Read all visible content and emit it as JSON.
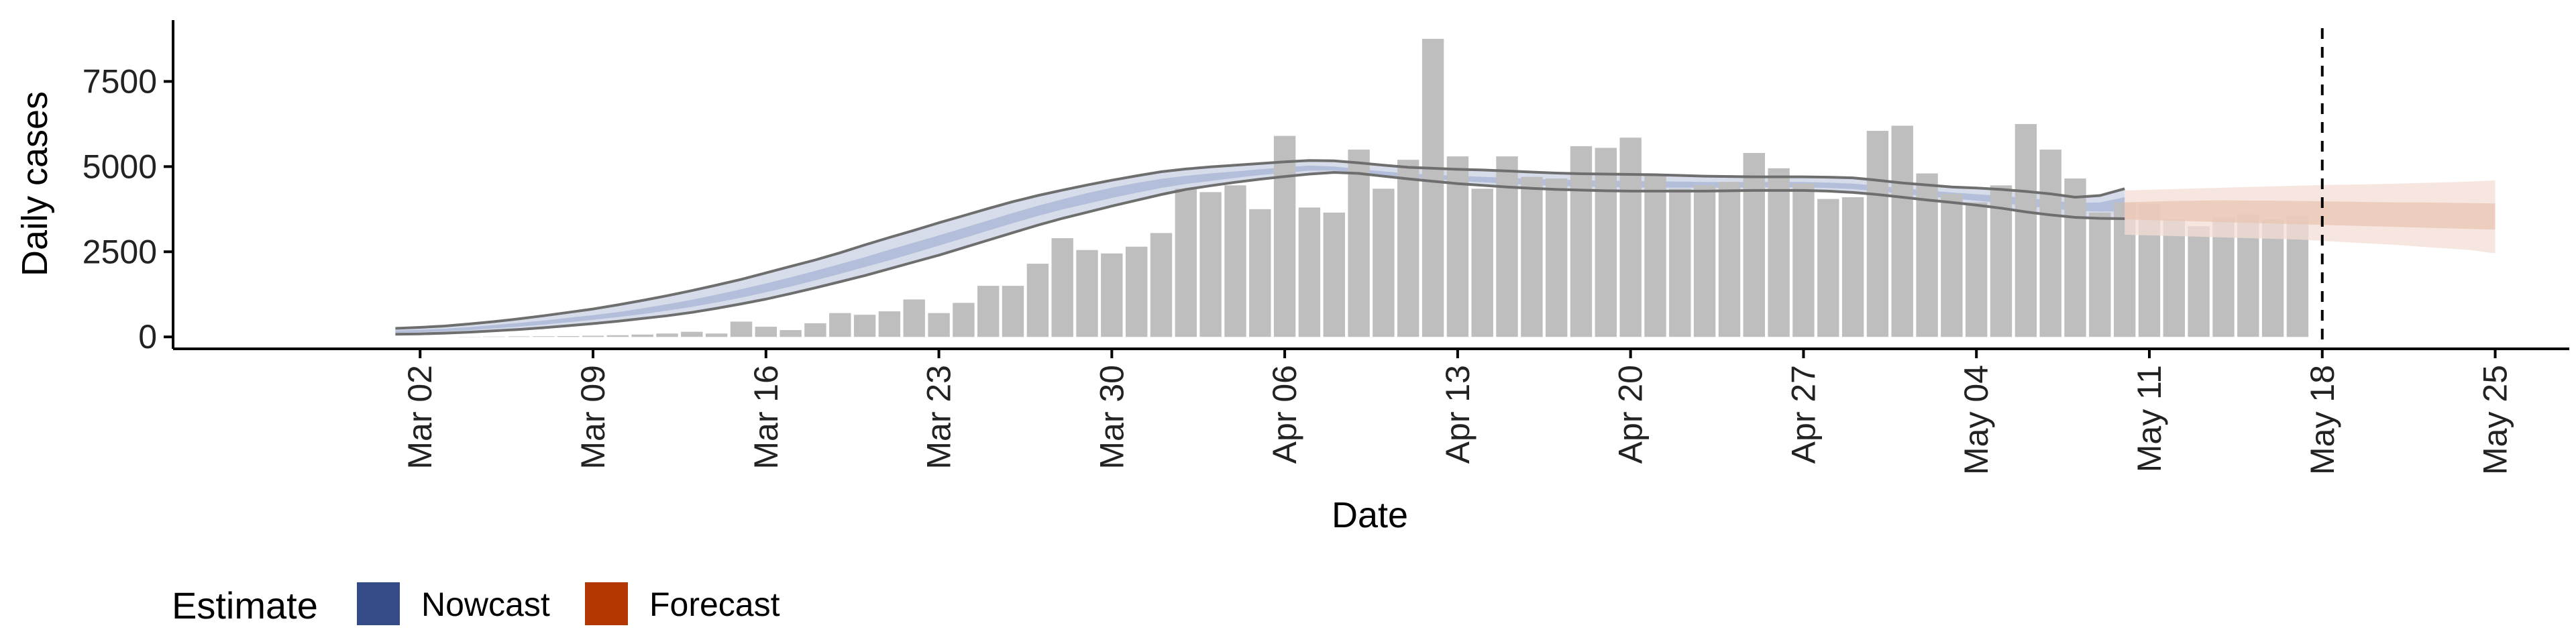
{
  "chart_data": {
    "type": "bar",
    "xlabel": "Date",
    "ylabel": "Daily cases",
    "ylim": [
      -350,
      9300
    ],
    "yticks": [
      0,
      2500,
      5000,
      7500
    ],
    "ytick_labels": [
      "0",
      "2500",
      "5000",
      "7500"
    ],
    "xlim": [
      "2020-02-21",
      "2020-05-28"
    ],
    "xticks": [
      "2020-03-02",
      "2020-03-09",
      "2020-03-16",
      "2020-03-23",
      "2020-03-30",
      "2020-04-06",
      "2020-04-13",
      "2020-04-20",
      "2020-04-27",
      "2020-05-04",
      "2020-05-11",
      "2020-05-18",
      "2020-05-25"
    ],
    "xtick_labels": [
      "Mar 02",
      "Mar 09",
      "Mar 16",
      "Mar 23",
      "Mar 30",
      "Apr 06",
      "Apr 13",
      "Apr 20",
      "Apr 27",
      "May 04",
      "May 11",
      "May 18",
      "May 25"
    ],
    "bars": {
      "start_date": "2020-03-01",
      "values": [
        0,
        0,
        0,
        5,
        10,
        15,
        20,
        25,
        35,
        50,
        70,
        100,
        150,
        100,
        450,
        300,
        200,
        400,
        700,
        650,
        750,
        1100,
        700,
        1000,
        1500,
        1500,
        2150,
        2900,
        2550,
        2450,
        2650,
        3050,
        4350,
        4250,
        4450,
        3750,
        5900,
        3800,
        3650,
        5500,
        4350,
        5200,
        8750,
        5300,
        4350,
        5300,
        4700,
        4650,
        5600,
        5550,
        5850,
        4750,
        4350,
        4450,
        4550,
        5400,
        4950,
        4500,
        4050,
        4100,
        6050,
        6200,
        4800,
        4200,
        3950,
        4450,
        6250,
        5500,
        4650,
        3650,
        3950,
        3900,
        3450,
        3250,
        3500,
        3600,
        3450,
        3550
      ]
    },
    "nowcast": {
      "start_date": "2020-03-01",
      "outer_upper": [
        250,
        280,
        320,
        380,
        450,
        530,
        620,
        720,
        820,
        940,
        1070,
        1210,
        1360,
        1520,
        1690,
        1880,
        2070,
        2260,
        2470,
        2700,
        2920,
        3130,
        3350,
        3560,
        3770,
        3970,
        4150,
        4310,
        4460,
        4600,
        4730,
        4850,
        4930,
        4990,
        5040,
        5090,
        5140,
        5180,
        5170,
        5110,
        5040,
        4980,
        4950,
        4920,
        4900,
        4870,
        4840,
        4810,
        4790,
        4780,
        4770,
        4760,
        4740,
        4720,
        4710,
        4700,
        4700,
        4700,
        4690,
        4670,
        4600,
        4520,
        4460,
        4400,
        4370,
        4330,
        4270,
        4200,
        4100,
        4150,
        4350
      ],
      "outer_lower": [
        80,
        90,
        110,
        140,
        180,
        220,
        270,
        330,
        390,
        460,
        540,
        620,
        720,
        840,
        970,
        1110,
        1270,
        1440,
        1620,
        1800,
        2000,
        2200,
        2400,
        2620,
        2840,
        3060,
        3280,
        3480,
        3660,
        3840,
        4010,
        4180,
        4330,
        4440,
        4540,
        4630,
        4710,
        4780,
        4830,
        4800,
        4720,
        4640,
        4570,
        4500,
        4450,
        4400,
        4360,
        4330,
        4310,
        4290,
        4280,
        4280,
        4280,
        4280,
        4290,
        4300,
        4300,
        4300,
        4280,
        4240,
        4180,
        4100,
        4020,
        3950,
        3870,
        3780,
        3670,
        3580,
        3510,
        3480,
        3470
      ],
      "inner_upper": [
        190,
        210,
        240,
        290,
        350,
        410,
        480,
        560,
        640,
        730,
        840,
        960,
        1090,
        1240,
        1400,
        1570,
        1750,
        1940,
        2140,
        2340,
        2560,
        2770,
        2980,
        3200,
        3420,
        3640,
        3850,
        4040,
        4220,
        4380,
        4520,
        4640,
        4730,
        4800,
        4860,
        4920,
        4980,
        5030,
        5000,
        4930,
        4860,
        4800,
        4760,
        4730,
        4700,
        4670,
        4640,
        4620,
        4600,
        4590,
        4580,
        4570,
        4560,
        4550,
        4550,
        4550,
        4550,
        4550,
        4530,
        4500,
        4440,
        4360,
        4300,
        4240,
        4190,
        4140,
        4080,
        4010,
        3930,
        3950,
        4100
      ],
      "inner_lower": [
        120,
        140,
        160,
        200,
        250,
        300,
        360,
        430,
        500,
        580,
        670,
        770,
        880,
        1010,
        1150,
        1310,
        1480,
        1660,
        1850,
        2050,
        2250,
        2460,
        2680,
        2900,
        3120,
        3340,
        3550,
        3740,
        3910,
        4080,
        4230,
        4370,
        4490,
        4580,
        4670,
        4750,
        4820,
        4880,
        4880,
        4830,
        4760,
        4690,
        4630,
        4580,
        4540,
        4500,
        4460,
        4430,
        4410,
        4400,
        4390,
        4380,
        4380,
        4380,
        4380,
        4390,
        4390,
        4390,
        4370,
        4340,
        4280,
        4200,
        4130,
        4070,
        4000,
        3930,
        3850,
        3770,
        3700,
        3680,
        3690
      ]
    },
    "forecast": {
      "start_date": "2020-05-10",
      "outer_upper": [
        4300,
        4320,
        4340,
        4360,
        4380,
        4400,
        4420,
        4440,
        4460,
        4470,
        4480,
        4500,
        4520,
        4540,
        4560,
        4600
      ],
      "outer_lower": [
        3000,
        2980,
        2960,
        2940,
        2920,
        2900,
        2880,
        2860,
        2820,
        2780,
        2740,
        2700,
        2650,
        2600,
        2550,
        2450
      ],
      "inner_upper": [
        3950,
        3970,
        3990,
        4000,
        4010,
        4000,
        4000,
        3990,
        3980,
        3970,
        3960,
        3950,
        3950,
        3940,
        3930,
        3920
      ],
      "inner_lower": [
        3450,
        3430,
        3410,
        3390,
        3370,
        3350,
        3330,
        3310,
        3290,
        3270,
        3250,
        3230,
        3210,
        3190,
        3170,
        3150
      ]
    },
    "vline_date": "2020-05-18",
    "legend": {
      "title": "Estimate",
      "entries": [
        {
          "label": "Nowcast",
          "color": "#344B87"
        },
        {
          "label": "Forecast",
          "color": "#B33600"
        }
      ]
    },
    "colors": {
      "bar": "#BEBEBE",
      "nowcast_outer": "#D6DCEA",
      "nowcast_inner": "#B3BFDA",
      "nowcast_line": "#6E6E6E",
      "forecast_outer": "#F3DED4",
      "forecast_inner": "#E8C4B3",
      "vline": "#000000",
      "axis": "#000000"
    }
  }
}
